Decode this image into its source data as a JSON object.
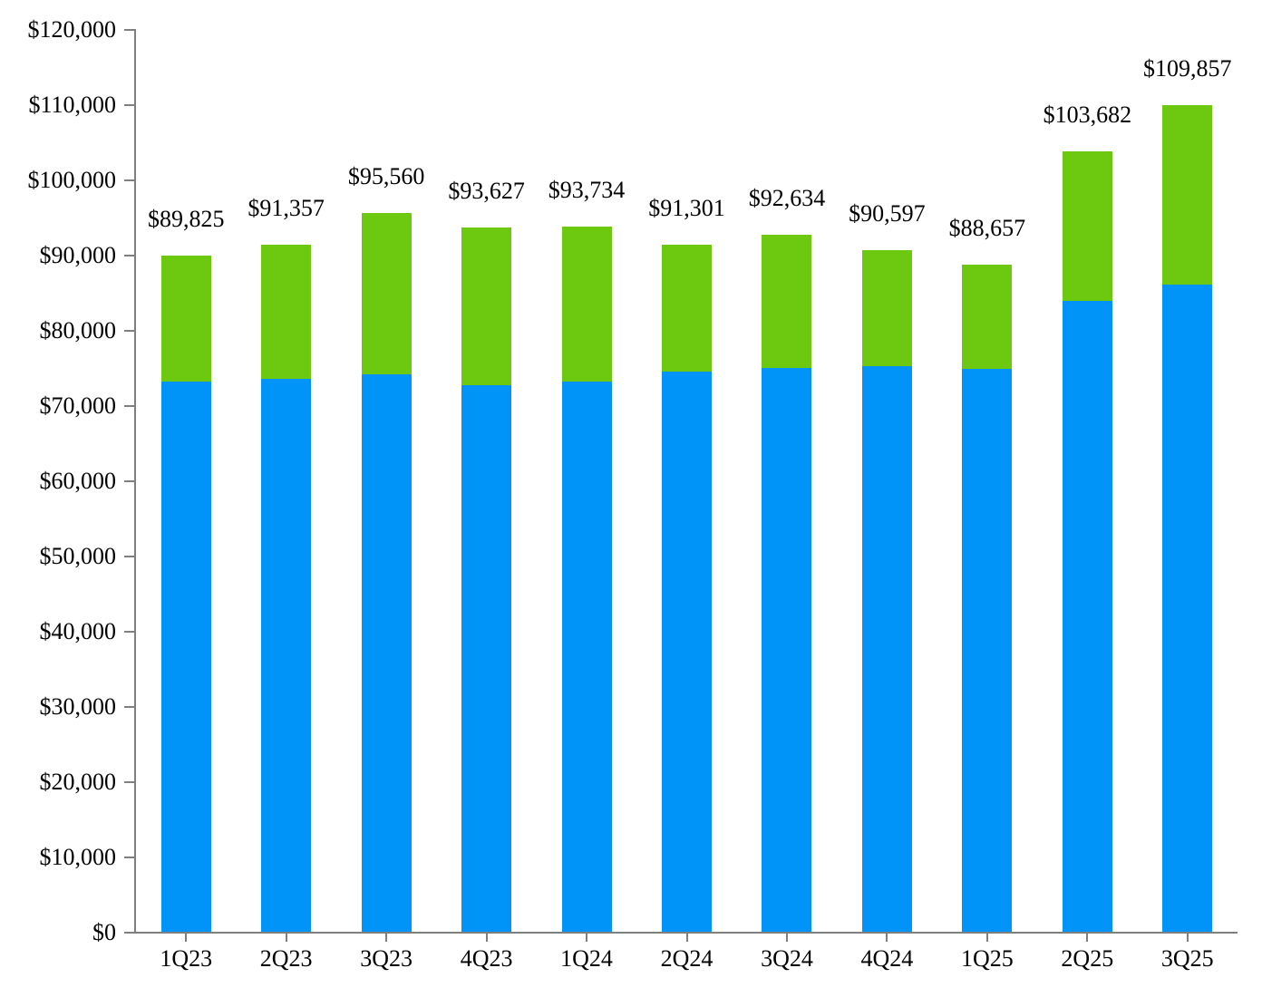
{
  "chart_data": {
    "type": "bar",
    "subtype": "stacked",
    "title": "",
    "legend_position": "none",
    "grid": "off",
    "background_color": "#FFFFFF",
    "axis_color": "#7F7F7F",
    "text_color": "#000000",
    "categories": [
      "1Q23",
      "2Q23",
      "3Q23",
      "4Q23",
      "1Q24",
      "2Q24",
      "3Q24",
      "4Q24",
      "1Q25",
      "2Q25",
      "3Q25"
    ],
    "series": [
      {
        "name": "blue-lower-segment",
        "color": "#0094F8",
        "values": [
          73100,
          73450,
          74050,
          72600,
          73100,
          74400,
          74900,
          75150,
          74800,
          83800,
          86000
        ]
      },
      {
        "name": "green-upper-segment",
        "color": "#6DC90F",
        "values": [
          16725,
          17907,
          21510,
          21027,
          20634,
          16901,
          17734,
          15447,
          13857,
          19882,
          23857
        ]
      }
    ],
    "totals": [
      89825,
      91357,
      95560,
      93627,
      93734,
      91301,
      92634,
      90597,
      88657,
      103682,
      109857
    ],
    "total_labels": [
      "$89,825",
      "$91,357",
      "$95,560",
      "$93,627",
      "$93,734",
      "$91,301",
      "$92,634",
      "$90,597",
      "$88,657",
      "$103,682",
      "$109,857"
    ],
    "y_axis": {
      "min": 0,
      "max": 120000,
      "tick_interval": 10000,
      "tick_labels_top_to_bottom": [
        "$120,000",
        "$110,000",
        "$100,000",
        "$90,000",
        "$80,000",
        "$70,000",
        "$60,000",
        "$50,000",
        "$40,000",
        "$30,000",
        "$20,000",
        "$10,000",
        "$0"
      ]
    },
    "x_axis": {
      "tick_marks": "below-axis-at-category-centers"
    }
  }
}
